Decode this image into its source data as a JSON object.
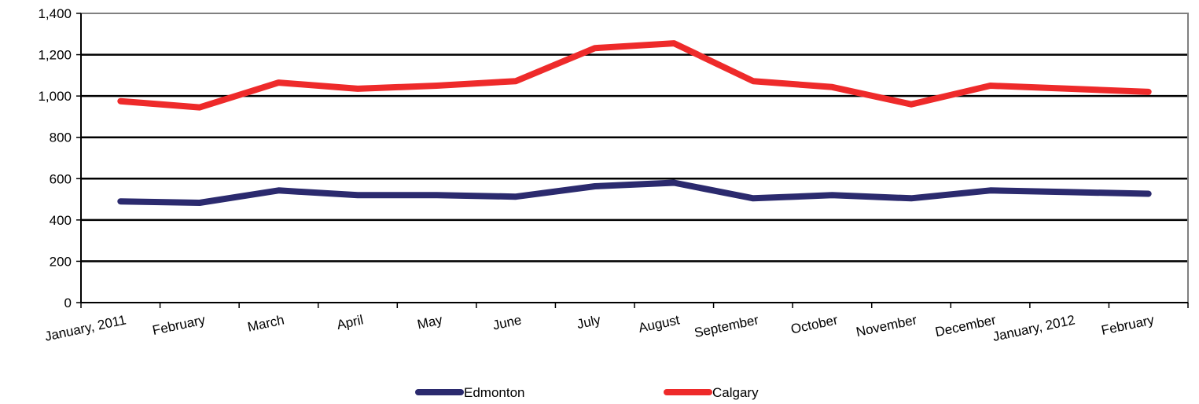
{
  "chart_data": {
    "type": "line",
    "title": "",
    "xlabel": "",
    "ylabel": "",
    "categories": [
      "January, 2011",
      "February",
      "March",
      "April",
      "May",
      "June",
      "July",
      "August",
      "September",
      "October",
      "November",
      "December",
      "January, 2012",
      "February"
    ],
    "y_ticks": [
      "0",
      "200",
      "400",
      "600",
      "800",
      "1,000",
      "1,200",
      "1,400"
    ],
    "ylim": [
      0,
      1400
    ],
    "grid": true,
    "legend_position": "bottom",
    "series": [
      {
        "name": "Edmonton",
        "color": "#2b2a6e",
        "values": [
          490,
          483,
          543,
          520,
          520,
          513,
          563,
          580,
          505,
          520,
          505,
          543,
          535,
          527
        ]
      },
      {
        "name": "Calgary",
        "color": "#ee2a2a",
        "values": [
          975,
          945,
          1065,
          1035,
          1050,
          1072,
          1232,
          1255,
          1072,
          1043,
          960,
          1050,
          1035,
          1020
        ]
      }
    ]
  }
}
